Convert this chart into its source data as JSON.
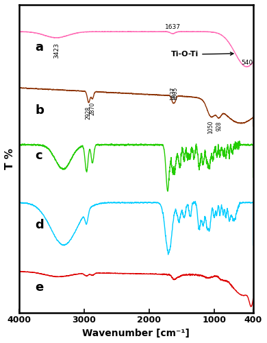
{
  "xlabel": "Wavenumber [cm⁻¹]",
  "ylabel": "T %",
  "background_color": "#ffffff",
  "colors": {
    "a": "#ff69b4",
    "b": "#8B3103",
    "c": "#22cc00",
    "d": "#00ccff",
    "e": "#dd0000"
  },
  "tio_ti_label": "Ti-O-Ti"
}
